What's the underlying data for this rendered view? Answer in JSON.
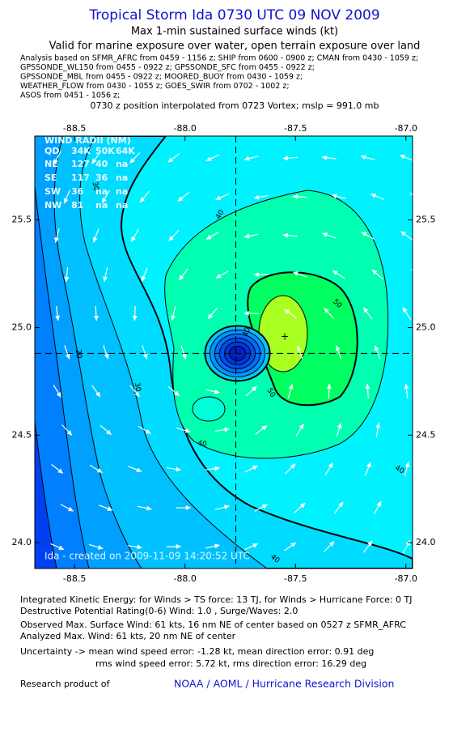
{
  "header": {
    "title": "Tropical Storm Ida 0730 UTC 09 NOV 2009",
    "subtitle": "Max 1-min sustained surface winds (kt)",
    "validity": "Valid for marine exposure over water, open terrain exposure over land",
    "analysis_lines": [
      "Analysis based on  SFMR_AFRC from 0459 - 1156 z;  SHIP from 0600 - 0900 z;  CMAN from 0430 - 1059 z;",
      "GPSSONDE_WL150 from 0455 - 0922 z;  GPSSONDE_SFC from 0455 - 0922 z;",
      "GPSSONDE_MBL from 0455 - 0922 z;  MOORED_BUOY from 0430 - 1059 z;",
      "WEATHER_FLOW from 0430 - 1055 z;  GOES_SWIR from 0702 - 1002 z;",
      "ASOS from 0451 - 1056 z;"
    ],
    "position": "0730 z position interpolated from 0723 Vortex; mslp = 991.0 mb"
  },
  "map": {
    "xlim": [
      -88.68,
      -86.97
    ],
    "ylim": [
      23.88,
      25.89
    ],
    "xticks": [
      -88.5,
      {
        "value": -88.0,
        "label": "-88.0"
      },
      -87.5,
      {
        "value": -87.0,
        "label": "-87.0"
      }
    ],
    "yticks": [
      {
        "value": 24.0,
        "label": "24.0"
      },
      24.5,
      {
        "value": 25.0,
        "label": "25.0"
      },
      25.5
    ],
    "center": {
      "lon": -87.77,
      "lat": 24.88
    },
    "wind_radii": {
      "title": "WIND RADII (NM)",
      "header": [
        "QD",
        "34K",
        "50K",
        "64K"
      ],
      "rows": [
        [
          "NE",
          127,
          40,
          "na"
        ],
        [
          "SE",
          117,
          36,
          "na"
        ],
        [
          "SW",
          36,
          "na",
          "na"
        ],
        [
          "NW",
          81,
          "na",
          "na"
        ]
      ]
    },
    "contour_labels": [
      40,
      40,
      50,
      50,
      40,
      40,
      30,
      20,
      30,
      40
    ],
    "credit": "Ida - created on 2009-11-09 14:20:52 UTC"
  },
  "footer": {
    "lines": [
      "Integrated Kinetic Energy:  for Winds > TS force: 13 TJ,  for Winds > Hurricane Force: 0 TJ",
      "Destructive Potential Rating(0-6)   Wind: 1.0 , Surge/Waves: 2.0",
      "Observed Max. Surface Wind: 61 kts, 16 nm NE of center based on 0527 z SFMR_AFRC",
      "Analyzed Max. Wind: 61 kts, 20 nm NE of center",
      "Uncertainty -> mean wind speed error:  -1.28 kt,   mean direction error: 0.91 deg",
      "rms wind speed error: 5.72 kt,   rms direction error: 16.29 deg"
    ],
    "research": "Research product of",
    "org": "NOAA / AOML / Hurricane Research Division"
  }
}
